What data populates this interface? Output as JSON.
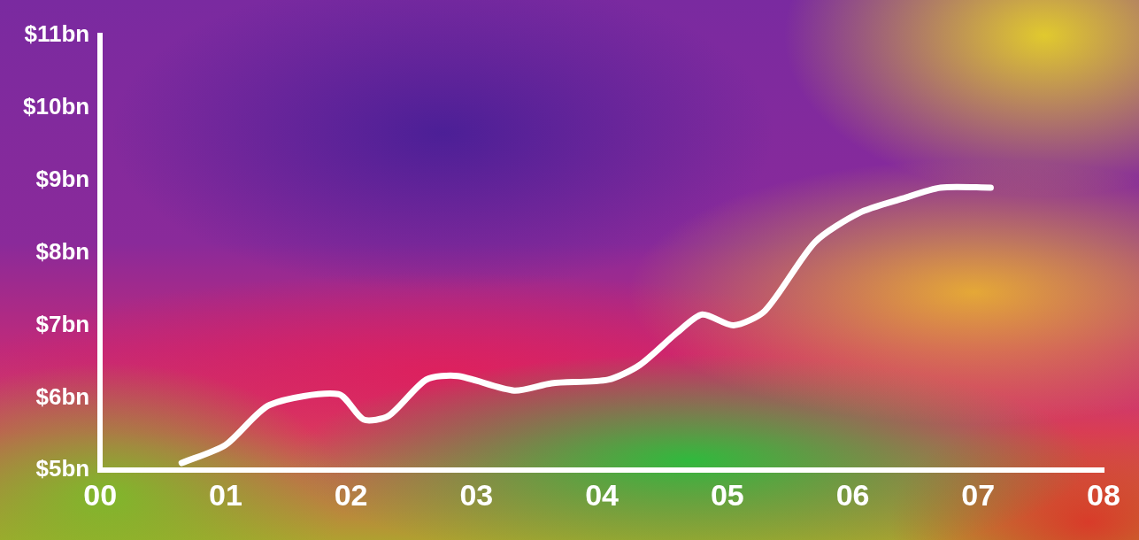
{
  "chart_data": {
    "type": "line",
    "x": [
      0.65,
      1.0,
      1.35,
      1.9,
      2.1,
      2.3,
      2.6,
      2.85,
      3.3,
      3.6,
      4.05,
      4.3,
      4.6,
      4.8,
      5.05,
      5.3,
      5.7,
      6.05,
      6.4,
      6.7,
      7.1
    ],
    "values": [
      5.1,
      5.35,
      5.9,
      6.05,
      5.7,
      5.75,
      6.25,
      6.3,
      6.1,
      6.2,
      6.25,
      6.45,
      6.9,
      7.15,
      7.0,
      7.2,
      8.15,
      8.55,
      8.75,
      8.9,
      8.9
    ],
    "color": "#ffffff",
    "xlim": [
      0,
      8
    ],
    "xticks": [
      {
        "value": 0,
        "label": "00"
      },
      {
        "value": 1,
        "label": "01"
      },
      {
        "value": 2,
        "label": "02"
      },
      {
        "value": 3,
        "label": "03"
      },
      {
        "value": 4,
        "label": "04"
      },
      {
        "value": 5,
        "label": "05"
      },
      {
        "value": 6,
        "label": "06"
      },
      {
        "value": 7,
        "label": "07"
      },
      {
        "value": 8,
        "label": "08"
      }
    ],
    "ylim": [
      5,
      11
    ],
    "yticks": [
      {
        "value": 5,
        "label": "$5bn"
      },
      {
        "value": 6,
        "label": "$6bn"
      },
      {
        "value": 7,
        "label": "$7bn"
      },
      {
        "value": 8,
        "label": "$8bn"
      },
      {
        "value": 9,
        "label": "$9bn"
      },
      {
        "value": 10,
        "label": "$10bn"
      },
      {
        "value": 11,
        "label": "$11bn"
      }
    ],
    "grid": false
  }
}
